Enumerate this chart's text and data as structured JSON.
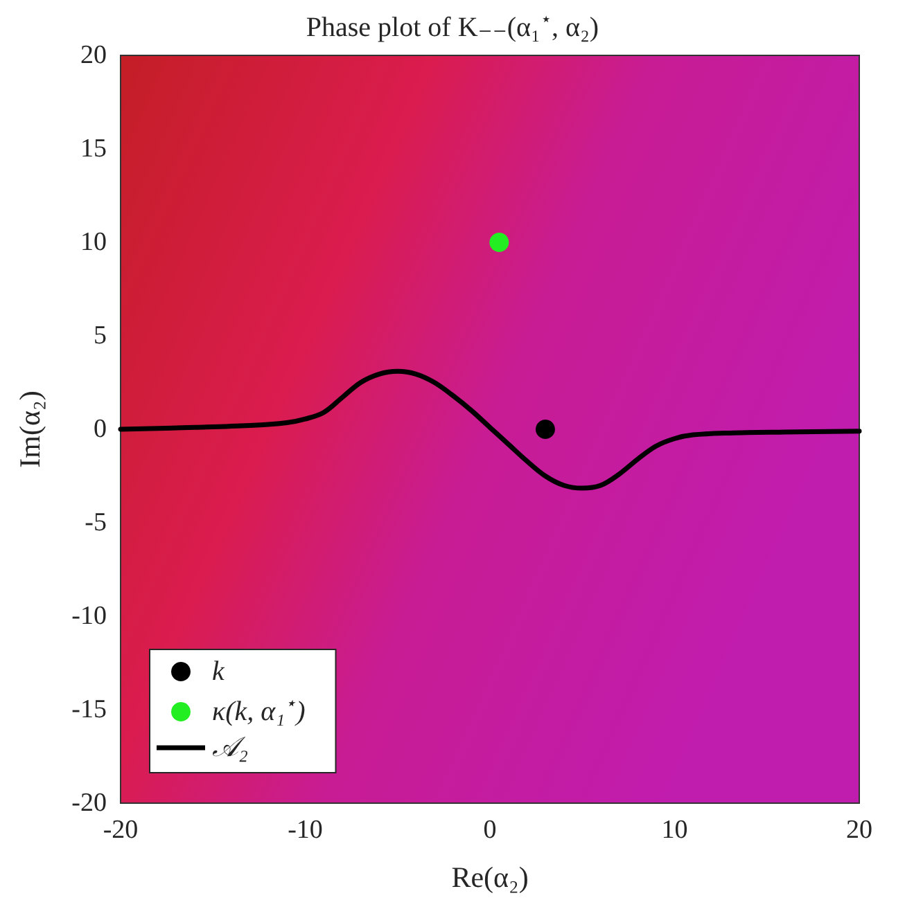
{
  "chart_data": {
    "type": "line",
    "title": "Phase plot of K₋₋(α₁$^{⋆}$, α₂)",
    "xlabel": "Re(α₂)",
    "ylabel": "Im(α₂)",
    "xlim": [
      -20,
      20
    ],
    "xticks": [
      -20,
      -10,
      0,
      10,
      20
    ],
    "ylim": [
      -20,
      20
    ],
    "yticks": [
      -20,
      -15,
      -10,
      -5,
      0,
      5,
      10,
      15,
      20
    ],
    "legend": "bottom left",
    "series": [
      {
        "type": "scatter",
        "name": "k",
        "color": "#000000",
        "marker": "circle",
        "x": [
          3
        ],
        "values": [
          0
        ]
      },
      {
        "type": "scatter",
        "name": "κ(k, α₁$^{⋆}$)",
        "color": "#22ee22",
        "marker": "circle",
        "x": [
          0.5
        ],
        "values": [
          10
        ]
      },
      {
        "name": "𝒜₂",
        "color": "#000000",
        "marker": "none",
        "line_style": "solid",
        "x": [
          -20,
          -16,
          -13,
          -11,
          -10,
          -9,
          -8,
          -7,
          -6,
          -5,
          -4,
          -3,
          -2,
          -1,
          0,
          1,
          2,
          3,
          4,
          5,
          6,
          7,
          8,
          9,
          10,
          11,
          13,
          16,
          20
        ],
        "values": [
          0,
          0.1,
          0.2,
          0.35,
          0.55,
          0.9,
          1.7,
          2.5,
          2.95,
          3.1,
          2.95,
          2.5,
          1.8,
          1,
          0.1,
          -0.8,
          -1.7,
          -2.5,
          -3,
          -3.15,
          -3,
          -2.4,
          -1.6,
          -0.9,
          -0.5,
          -0.3,
          -0.2,
          -0.15,
          -0.1
        ]
      }
    ]
  }
}
